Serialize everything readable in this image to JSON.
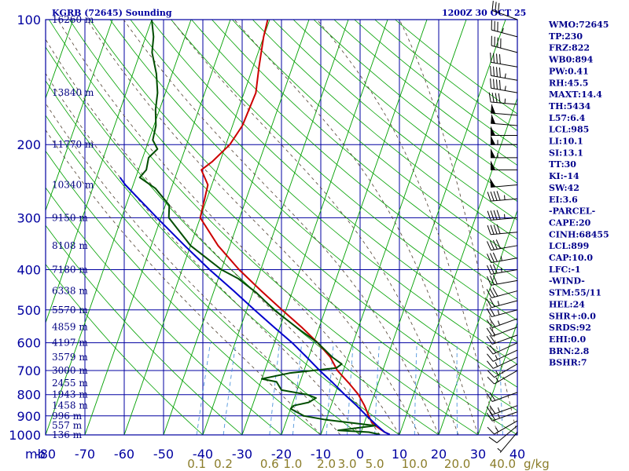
{
  "chart_data": {
    "type": "line",
    "title_left": "KGRB (72645) Sounding",
    "title_right": "1200Z 30 OCT 25",
    "corner_label": "mb",
    "pressure_levels": [
      100,
      200,
      300,
      400,
      500,
      600,
      700,
      800,
      900,
      1000
    ],
    "pressure_labels": [
      "100",
      "200",
      "300",
      "400",
      "500",
      "600",
      "700",
      "800",
      "900",
      "1000"
    ],
    "temperature_ticks": [
      -80,
      -70,
      -60,
      -50,
      -40,
      -30,
      -20,
      -10,
      0,
      10,
      20,
      30,
      40
    ],
    "temperature_labels": [
      "-80",
      "-70",
      "-60",
      "-50",
      "-40",
      "-30",
      "-20",
      "-10",
      "0",
      "10",
      "20",
      "30",
      "40"
    ],
    "xlim": [
      -80,
      40
    ],
    "ylim": [
      100,
      1000
    ],
    "height_labels": [
      {
        "p": 100,
        "text": "16260 m"
      },
      {
        "p": 150,
        "text": "13840 m"
      },
      {
        "p": 200,
        "text": "11770 m"
      },
      {
        "p": 250,
        "text": "10340 m"
      },
      {
        "p": 300,
        "text": "9150 m"
      },
      {
        "p": 350,
        "text": "8108 m"
      },
      {
        "p": 400,
        "text": "7180 m"
      },
      {
        "p": 450,
        "text": "6338 m"
      },
      {
        "p": 500,
        "text": "5570 m"
      },
      {
        "p": 550,
        "text": "4859 m"
      },
      {
        "p": 600,
        "text": "4197 m"
      },
      {
        "p": 650,
        "text": "3579 m"
      },
      {
        "p": 700,
        "text": "3000 m"
      },
      {
        "p": 750,
        "text": "2455 m"
      },
      {
        "p": 800,
        "text": "1943 m"
      },
      {
        "p": 850,
        "text": "1458 m"
      },
      {
        "p": 900,
        "text": "996 m"
      },
      {
        "p": 950,
        "text": "557 m"
      },
      {
        "p": 1000,
        "text": "136 m"
      }
    ],
    "mixing_ratio_labels": [
      {
        "w": 0.1,
        "text": "0.1"
      },
      {
        "w": 0.2,
        "text": "0.2"
      },
      {
        "w": 0.6,
        "text": "0.6"
      },
      {
        "w": 1.0,
        "text": "1.0"
      },
      {
        "w": 2.0,
        "text": "2.0"
      },
      {
        "w": 3.0,
        "text": "3.0"
      },
      {
        "w": 5.0,
        "text": "5.0"
      },
      {
        "w": 10.0,
        "text": "10.0"
      },
      {
        "w": 20.0,
        "text": "20.0"
      },
      {
        "w": 40.0,
        "text": "40.0"
      }
    ],
    "mixing_ratio_unit": "g/kg",
    "series": [
      {
        "color": "#cc0000",
        "points": [
          [
            998,
            7.5
          ],
          [
            985,
            6.0
          ],
          [
            950,
            3.0
          ],
          [
            925,
            1.5
          ],
          [
            900,
            0.5
          ],
          [
            850,
            -1.5
          ],
          [
            800,
            -4.0
          ],
          [
            750,
            -7.5
          ],
          [
            700,
            -11.5
          ],
          [
            650,
            -14.5
          ],
          [
            600,
            -19.0
          ],
          [
            550,
            -24.5
          ],
          [
            500,
            -31.0
          ],
          [
            450,
            -38.0
          ],
          [
            400,
            -45.5
          ],
          [
            350,
            -53.0
          ],
          [
            300,
            -60.0
          ],
          [
            250,
            -61.0
          ],
          [
            230,
            -64.0
          ],
          [
            220,
            -62.0
          ],
          [
            200,
            -59.0
          ],
          [
            180,
            -57.5
          ],
          [
            150,
            -57.0
          ],
          [
            130,
            -58.5
          ],
          [
            110,
            -60.0
          ],
          [
            100,
            -60.5
          ]
        ]
      },
      {
        "color": "#004d00",
        "points": [
          [
            998,
            5.0
          ],
          [
            985,
            2.0
          ],
          [
            975,
            -6.0
          ],
          [
            950,
            3.0
          ],
          [
            920,
            -10.0
          ],
          [
            900,
            -16.0
          ],
          [
            865,
            -20.0
          ],
          [
            850,
            -19.5
          ],
          [
            835,
            -16.0
          ],
          [
            815,
            -14.5
          ],
          [
            800,
            -17.0
          ],
          [
            780,
            -24.0
          ],
          [
            745,
            -26.0
          ],
          [
            733,
            -30.0
          ],
          [
            710,
            -23.5
          ],
          [
            690,
            -12.0
          ],
          [
            675,
            -11.0
          ],
          [
            650,
            -14.0
          ],
          [
            600,
            -19.0
          ],
          [
            560,
            -24.5
          ],
          [
            500,
            -33.0
          ],
          [
            455,
            -39.0
          ],
          [
            420,
            -45.0
          ],
          [
            400,
            -50.0
          ],
          [
            350,
            -60.0
          ],
          [
            300,
            -68.0
          ],
          [
            280,
            -69.0
          ],
          [
            255,
            -74.0
          ],
          [
            240,
            -79.0
          ],
          [
            230,
            -78.0
          ],
          [
            215,
            -78.5
          ],
          [
            205,
            -77.0
          ],
          [
            195,
            -79.0
          ],
          [
            180,
            -79.5
          ],
          [
            165,
            -81.0
          ],
          [
            150,
            -82.0
          ],
          [
            135,
            -84.0
          ],
          [
            120,
            -87.0
          ],
          [
            110,
            -88.0
          ],
          [
            100,
            -90.0
          ]
        ]
      },
      {
        "color": "#0000cc",
        "points": [
          [
            998,
            7.5
          ],
          [
            985,
            6.0
          ],
          [
            950,
            3.5
          ],
          [
            900,
            0.0
          ],
          [
            850,
            -3.5
          ],
          [
            800,
            -7.5
          ],
          [
            750,
            -11.5
          ],
          [
            700,
            -16.0
          ],
          [
            650,
            -20.5
          ],
          [
            600,
            -25.5
          ],
          [
            550,
            -31.5
          ],
          [
            500,
            -38.0
          ],
          [
            450,
            -45.0
          ],
          [
            400,
            -53.0
          ],
          [
            350,
            -61.5
          ],
          [
            300,
            -71.0
          ],
          [
            250,
            -82.0
          ],
          [
            240,
            -84.0
          ]
        ]
      }
    ],
    "wind_barbs": [
      {
        "p": 100,
        "dir": 290,
        "spd": 30
      },
      {
        "p": 110,
        "dir": 285,
        "spd": 35
      },
      {
        "p": 120,
        "dir": 285,
        "spd": 40
      },
      {
        "p": 130,
        "dir": 280,
        "spd": 40
      },
      {
        "p": 140,
        "dir": 280,
        "spd": 45
      },
      {
        "p": 150,
        "dir": 280,
        "spd": 45
      },
      {
        "p": 160,
        "dir": 275,
        "spd": 45
      },
      {
        "p": 170,
        "dir": 275,
        "spd": 50
      },
      {
        "p": 180,
        "dir": 275,
        "spd": 50
      },
      {
        "p": 190,
        "dir": 270,
        "spd": 50
      },
      {
        "p": 200,
        "dir": 270,
        "spd": 55
      },
      {
        "p": 215,
        "dir": 270,
        "spd": 55
      },
      {
        "p": 230,
        "dir": 270,
        "spd": 50
      },
      {
        "p": 250,
        "dir": 265,
        "spd": 50
      },
      {
        "p": 270,
        "dir": 265,
        "spd": 45
      },
      {
        "p": 300,
        "dir": 265,
        "spd": 45
      },
      {
        "p": 325,
        "dir": 265,
        "spd": 40
      },
      {
        "p": 350,
        "dir": 260,
        "spd": 40
      },
      {
        "p": 375,
        "dir": 260,
        "spd": 35
      },
      {
        "p": 400,
        "dir": 260,
        "spd": 35
      },
      {
        "p": 425,
        "dir": 260,
        "spd": 30
      },
      {
        "p": 450,
        "dir": 255,
        "spd": 30
      },
      {
        "p": 475,
        "dir": 255,
        "spd": 25
      },
      {
        "p": 500,
        "dir": 255,
        "spd": 25
      },
      {
        "p": 525,
        "dir": 250,
        "spd": 25
      },
      {
        "p": 550,
        "dir": 250,
        "spd": 20
      },
      {
        "p": 575,
        "dir": 250,
        "spd": 20
      },
      {
        "p": 600,
        "dir": 245,
        "spd": 20
      },
      {
        "p": 625,
        "dir": 245,
        "spd": 15
      },
      {
        "p": 650,
        "dir": 245,
        "spd": 15
      },
      {
        "p": 675,
        "dir": 240,
        "spd": 15
      },
      {
        "p": 700,
        "dir": 240,
        "spd": 15
      },
      {
        "p": 790,
        "dir": 250,
        "spd": 20
      },
      {
        "p": 850,
        "dir": 250,
        "spd": 25
      },
      {
        "p": 880,
        "dir": 250,
        "spd": 25
      },
      {
        "p": 925,
        "dir": 240,
        "spd": 15
      },
      {
        "p": 950,
        "dir": 230,
        "spd": 10
      },
      {
        "p": 985,
        "dir": 220,
        "spd": 5
      }
    ]
  },
  "indices": [
    "WMO:72645",
    "TP:230",
    "FRZ:822",
    "WB0:894",
    "PW:0.41",
    "RH:45.5",
    "MAXT:14.4",
    "TH:5434",
    "L57:6.4",
    "LCL:985",
    "LI:10.1",
    "SI:13.1",
    "TT:30",
    "KI:-14",
    "SW:42",
    "EI:3.6",
    "-PARCEL-",
    "CAPE:20",
    "CINH:68455",
    "LCL:899",
    "CAP:10.0",
    "LFC:-1",
    "-WIND-",
    "STM:55/11",
    "HEL:24",
    "SHR+:0.0",
    "SRDS:92",
    "EHI:0.0",
    "BRN:2.8",
    "BSHR:7"
  ],
  "colors": {
    "grid": "#0000a0",
    "dry_adiabat": "#00a000",
    "temperature": "#cc0000",
    "dewpoint": "#004d00",
    "parcel": "#0000cc",
    "mixing_ratio": "#4f95dc",
    "moist_adiabat": "#504030"
  }
}
